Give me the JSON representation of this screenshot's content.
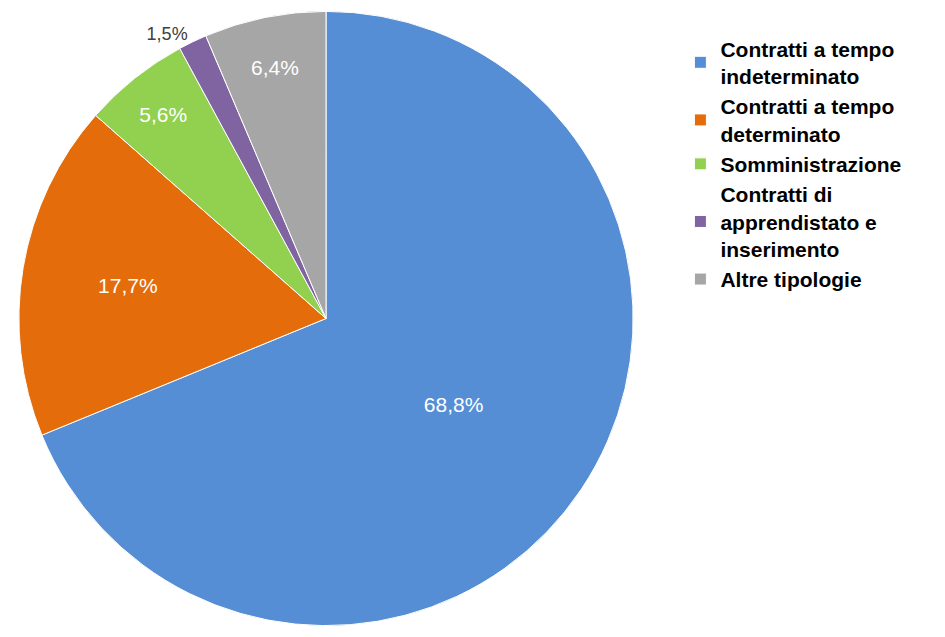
{
  "chart_data": {
    "type": "pie",
    "categories": [
      "Contratti a tempo indeterminato",
      "Contratti a tempo determinato",
      "Somministrazione",
      "Contratti di apprendistato e inserimento",
      "Altre tipologie"
    ],
    "values": [
      68.8,
      17.7,
      5.6,
      1.5,
      6.4
    ],
    "value_labels": [
      "68,8%",
      "17,7%",
      "5,6%",
      "1,5%",
      "6,4%"
    ],
    "colors": [
      "#558ed5",
      "#e46c0a",
      "#92d050",
      "#8064a2",
      "#a6a6a6"
    ],
    "data_labels": true,
    "legend": "right"
  }
}
